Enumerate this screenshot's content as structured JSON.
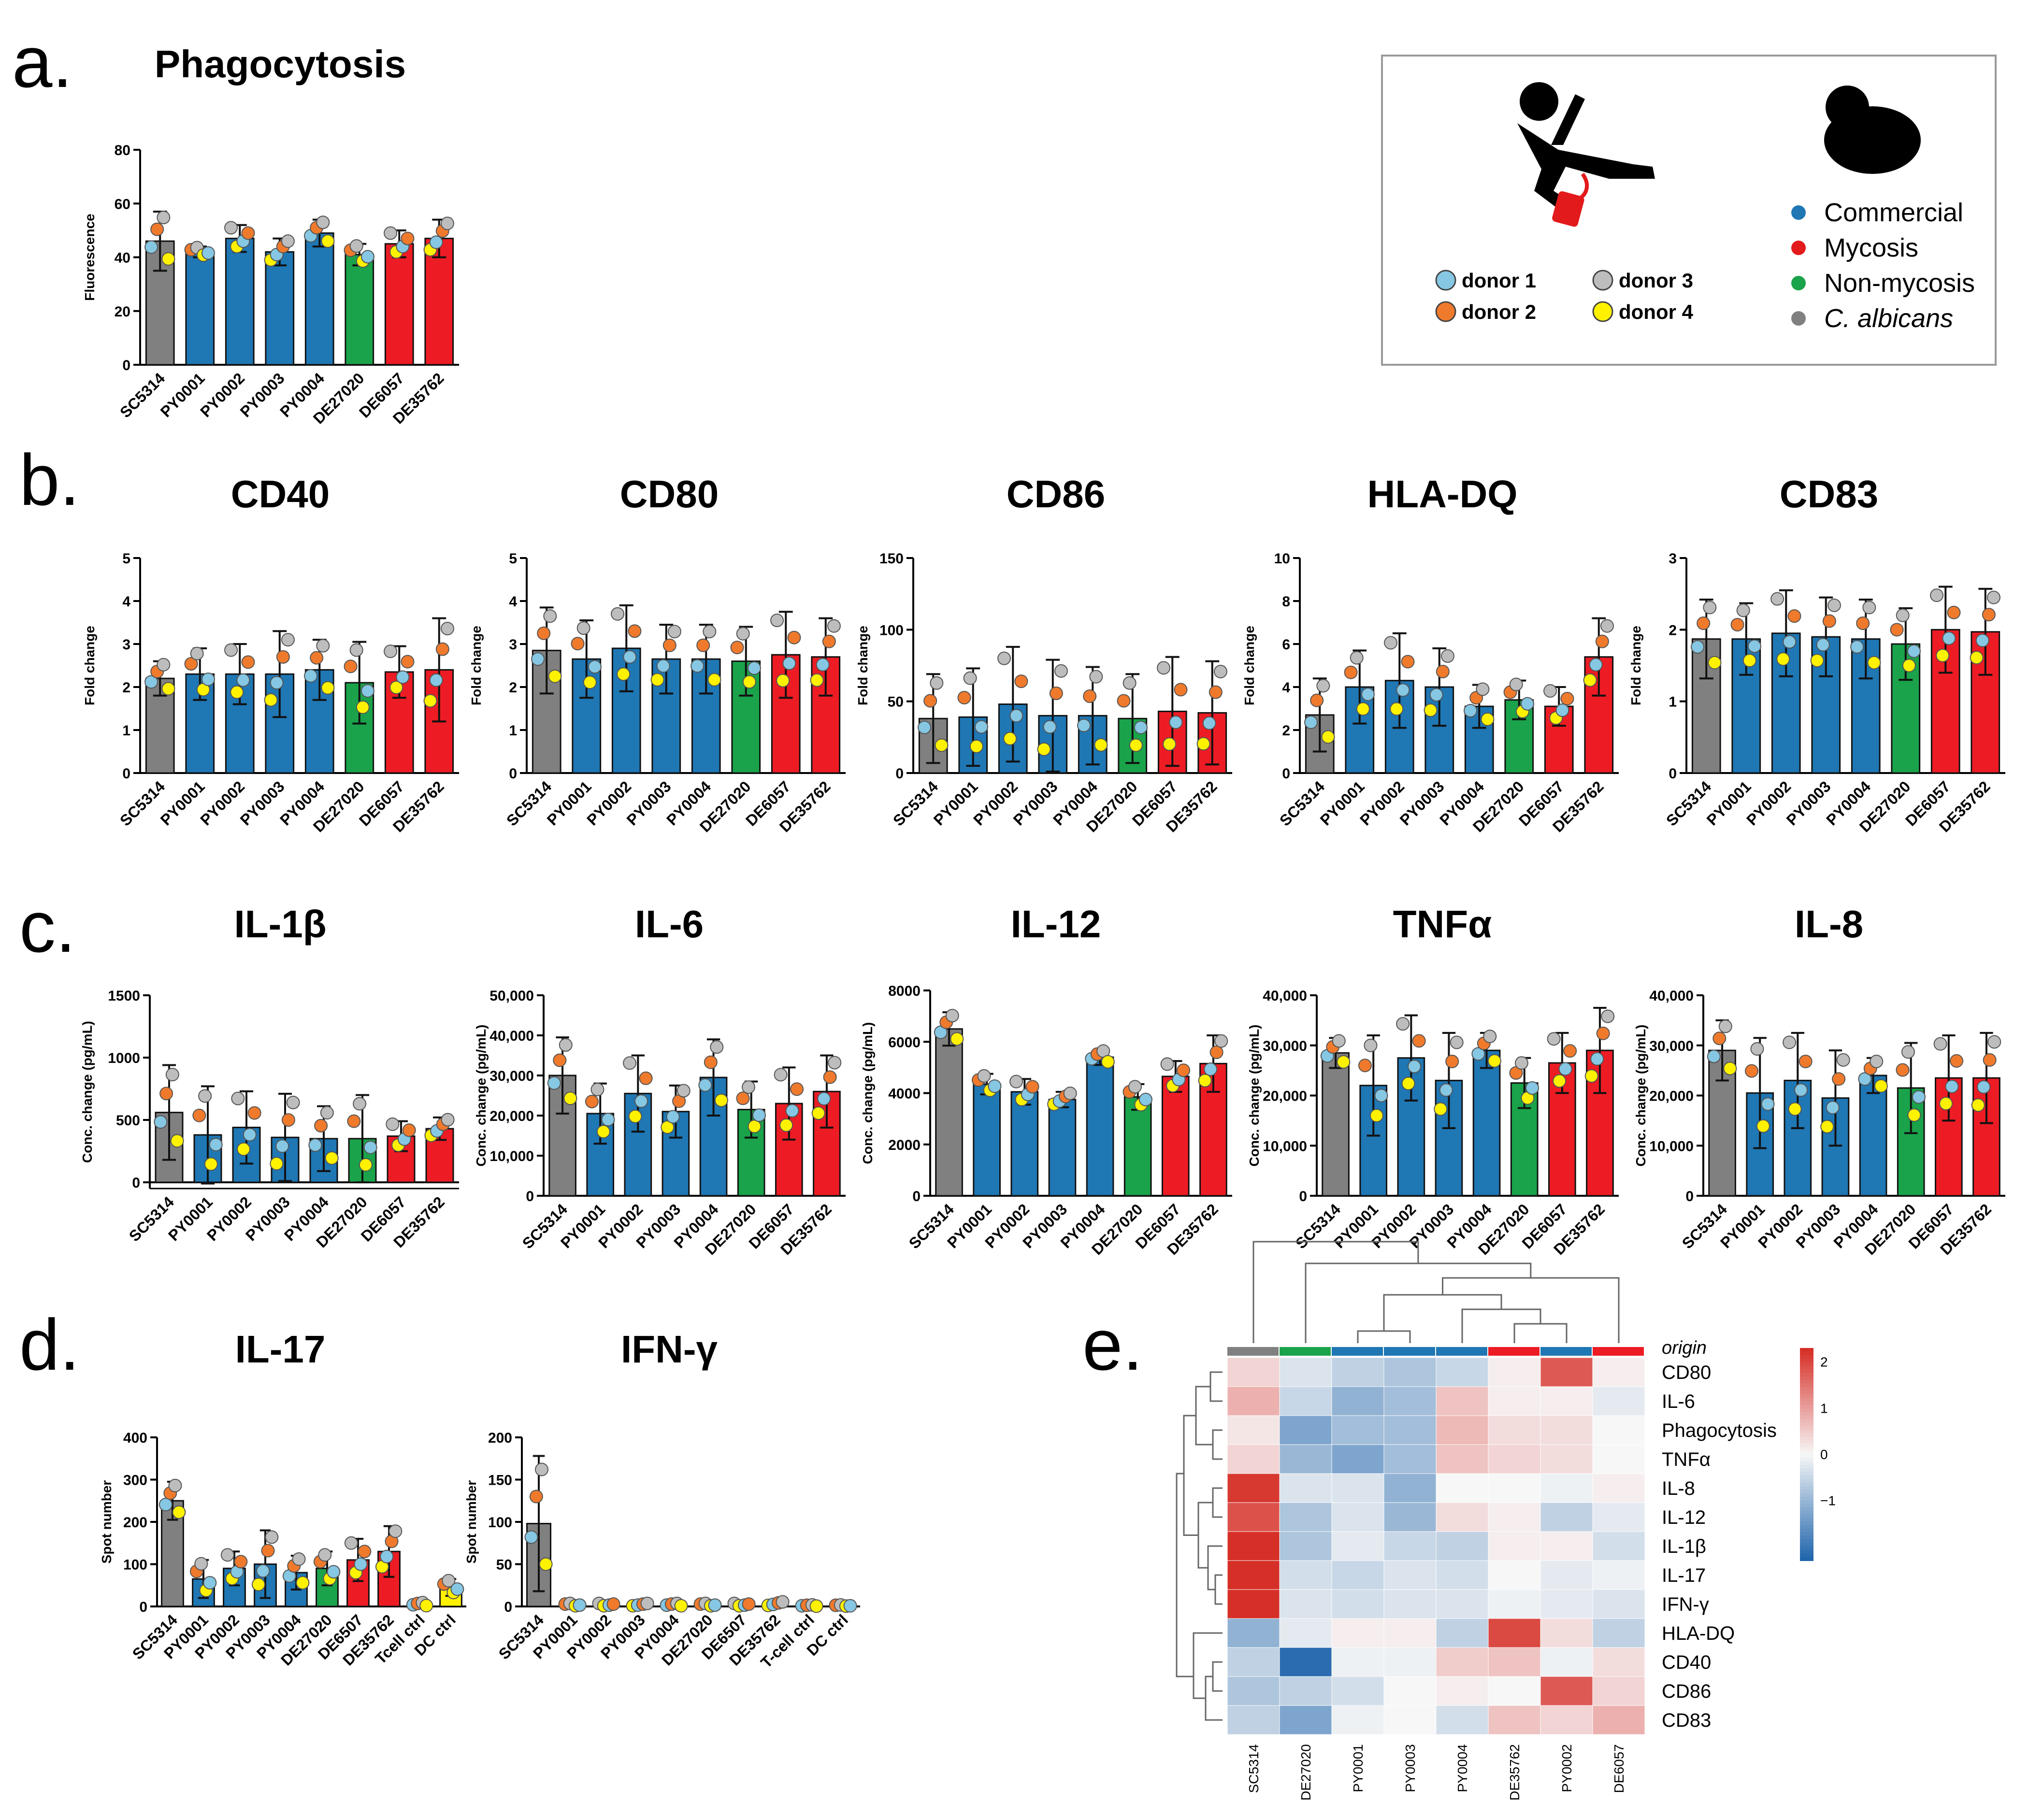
{
  "panel_labels": {
    "a": "a.",
    "b": "b.",
    "c": "c.",
    "d": "d.",
    "e": "e."
  },
  "legend": {
    "donors": [
      {
        "label": "donor 1",
        "color": "#86c7e3"
      },
      {
        "label": "donor 2",
        "color": "#f07a2c"
      },
      {
        "label": "donor 3",
        "color": "#bdbdbd"
      },
      {
        "label": "donor 4",
        "color": "#fff200"
      }
    ],
    "origins": [
      {
        "label": "Commercial",
        "color": "#1f77b4"
      },
      {
        "label": "Mycosis",
        "color": "#e31a1c"
      },
      {
        "label": "Non-mycosis",
        "color": "#1aa34a"
      },
      {
        "label": "C. albicans",
        "color": "#808080"
      }
    ]
  },
  "colors": {
    "gray": "#808080",
    "blue": "#1f77b4",
    "green": "#1aa34a",
    "red": "#ed1c24",
    "yellow": "#fff200"
  },
  "chart_data": [
    {
      "id": "phago",
      "type": "bar",
      "title": "Phagocytosis",
      "ylabel": "Fluorescence",
      "categories": [
        "SC5314",
        "PY0001",
        "PY0002",
        "PY0003",
        "PY0004",
        "DE27020",
        "DE6057",
        "DE35762"
      ],
      "bar_colors": [
        "gray",
        "blue",
        "blue",
        "blue",
        "blue",
        "green",
        "red",
        "red"
      ],
      "values": [
        46,
        42,
        47,
        42,
        49,
        41,
        45,
        47
      ],
      "errors": [
        11,
        2,
        5,
        5,
        5,
        4,
        5,
        7
      ],
      "ylim": [
        0,
        80
      ],
      "yticks": [
        "0",
        "20",
        "40",
        "60",
        "80"
      ]
    },
    {
      "id": "cd40",
      "type": "bar",
      "title": "CD40",
      "ylabel": "Fold change",
      "categories": [
        "SC5314",
        "PY0001",
        "PY0002",
        "PY0003",
        "PY0004",
        "DE27020",
        "DE6057",
        "DE35762"
      ],
      "bar_colors": [
        "gray",
        "blue",
        "blue",
        "blue",
        "blue",
        "green",
        "red",
        "red"
      ],
      "values": [
        2.2,
        2.3,
        2.3,
        2.3,
        2.4,
        2.1,
        2.35,
        2.4
      ],
      "errors": [
        0.4,
        0.6,
        0.7,
        1.0,
        0.7,
        0.95,
        0.6,
        1.2
      ],
      "ylim": [
        0,
        5
      ],
      "yticks": [
        "0",
        "1",
        "2",
        "3",
        "4",
        "5"
      ]
    },
    {
      "id": "cd80",
      "type": "bar",
      "title": "CD80",
      "ylabel": "Fold change",
      "categories": [
        "SC5314",
        "PY0001",
        "PY0002",
        "PY0003",
        "PY0004",
        "DE27020",
        "DE6057",
        "DE35762"
      ],
      "bar_colors": [
        "gray",
        "blue",
        "blue",
        "blue",
        "blue",
        "green",
        "red",
        "red"
      ],
      "values": [
        2.85,
        2.65,
        2.9,
        2.65,
        2.65,
        2.6,
        2.75,
        2.7
      ],
      "errors": [
        1.0,
        0.9,
        1.0,
        0.8,
        0.8,
        0.8,
        1.0,
        0.9
      ],
      "ylim": [
        0,
        5
      ],
      "yticks": [
        "0",
        "1",
        "2",
        "3",
        "4",
        "5"
      ]
    },
    {
      "id": "cd86",
      "type": "bar",
      "title": "CD86",
      "ylabel": "Fold change",
      "categories": [
        "SC5314",
        "PY0001",
        "PY0002",
        "PY0003",
        "PY0004",
        "DE27020",
        "DE6057",
        "DE35762"
      ],
      "bar_colors": [
        "gray",
        "blue",
        "blue",
        "blue",
        "blue",
        "green",
        "red",
        "red"
      ],
      "values": [
        38,
        39,
        48,
        40,
        40,
        38,
        43,
        42
      ],
      "errors": [
        31,
        34,
        40,
        39,
        34,
        31,
        38,
        36
      ],
      "ylim": [
        0,
        150
      ],
      "yticks": [
        "0",
        "50",
        "100",
        "150"
      ]
    },
    {
      "id": "hladq",
      "type": "bar",
      "title": "HLA-DQ",
      "ylabel": "Fold change",
      "categories": [
        "SC5314",
        "PY0001",
        "PY0002",
        "PY0003",
        "PY0004",
        "DE27020",
        "DE6057",
        "DE35762"
      ],
      "bar_colors": [
        "gray",
        "blue",
        "blue",
        "blue",
        "blue",
        "green",
        "red",
        "red"
      ],
      "values": [
        2.7,
        4.0,
        4.3,
        4.0,
        3.1,
        3.4,
        3.1,
        5.4
      ],
      "errors": [
        1.7,
        1.7,
        2.2,
        1.8,
        1.0,
        0.9,
        0.9,
        1.8
      ],
      "ylim": [
        0,
        10
      ],
      "yticks": [
        "0",
        "2",
        "4",
        "6",
        "8",
        "10"
      ]
    },
    {
      "id": "cd83",
      "type": "bar",
      "title": "CD83",
      "ylabel": "Fold change",
      "categories": [
        "SC5314",
        "PY0001",
        "PY0002",
        "PY0003",
        "PY0004",
        "DE27020",
        "DE6057",
        "DE35762"
      ],
      "bar_colors": [
        "gray",
        "blue",
        "blue",
        "blue",
        "blue",
        "green",
        "red",
        "red"
      ],
      "values": [
        1.87,
        1.87,
        1.95,
        1.9,
        1.87,
        1.8,
        2.0,
        1.97
      ],
      "errors": [
        0.55,
        0.5,
        0.6,
        0.55,
        0.55,
        0.5,
        0.6,
        0.6
      ],
      "ylim": [
        0,
        3
      ],
      "yticks": [
        "0",
        "1",
        "2",
        "3"
      ]
    },
    {
      "id": "il1b",
      "type": "bar",
      "title": "IL-1β",
      "ylabel": "Conc. change (pg/mL)",
      "categories": [
        "SC5314",
        "PY0001",
        "PY0002",
        "PY0003",
        "PY0004",
        "DE27020",
        "DE6057",
        "DE35762"
      ],
      "bar_colors": [
        "gray",
        "blue",
        "blue",
        "blue",
        "blue",
        "green",
        "red",
        "red"
      ],
      "values": [
        560,
        380,
        440,
        360,
        350,
        350,
        370,
        430
      ],
      "errors": [
        380,
        390,
        290,
        350,
        260,
        350,
        120,
        90
      ],
      "ylim": [
        -50,
        1500
      ],
      "yticks": [
        "0",
        "500",
        "1000",
        "1500"
      ]
    },
    {
      "id": "il6",
      "type": "bar",
      "title": "IL-6",
      "ylabel": "Conc. change (pg/mL)",
      "categories": [
        "SC5314",
        "PY0001",
        "PY0002",
        "PY0003",
        "PY0004",
        "DE27020",
        "DE6057",
        "DE35762"
      ],
      "bar_colors": [
        "gray",
        "blue",
        "blue",
        "blue",
        "blue",
        "green",
        "red",
        "red"
      ],
      "values": [
        30000,
        20500,
        25500,
        21000,
        29500,
        21500,
        23000,
        26000
      ],
      "errors": [
        9500,
        7500,
        9500,
        6500,
        9500,
        7000,
        9000,
        9000
      ],
      "ylim": [
        0,
        50000
      ],
      "yticks": [
        "0",
        "10,000",
        "20,000",
        "30,000",
        "40,000",
        "50,000"
      ]
    },
    {
      "id": "il12",
      "type": "bar",
      "title": "IL-12",
      "ylabel": "Conc. change (pg/mL)",
      "categories": [
        "SC5314",
        "PY0001",
        "PY0002",
        "PY0003",
        "PY0004",
        "DE27020",
        "DE6057",
        "DE35762"
      ],
      "bar_colors": [
        "gray",
        "blue",
        "blue",
        "blue",
        "blue",
        "green",
        "red",
        "red"
      ],
      "values": [
        6500,
        4350,
        4050,
        3750,
        5400,
        3850,
        4650,
        5150
      ],
      "errors": [
        650,
        400,
        500,
        300,
        300,
        500,
        600,
        1100
      ],
      "ylim": [
        0,
        8000
      ],
      "yticks": [
        "0",
        "2000",
        "4000",
        "6000",
        "8000"
      ]
    },
    {
      "id": "tnfa",
      "type": "bar",
      "title": "TNFα",
      "ylabel": "Conc. change (pg/mL)",
      "categories": [
        "SC5314",
        "PY0001",
        "PY0002",
        "PY0003",
        "PY0004",
        "DE27020",
        "DE6057",
        "DE35762"
      ],
      "bar_colors": [
        "gray",
        "blue",
        "blue",
        "blue",
        "blue",
        "green",
        "red",
        "red"
      ],
      "values": [
        28500,
        22000,
        27500,
        23000,
        29000,
        22500,
        26500,
        29000
      ],
      "errors": [
        3000,
        10000,
        8500,
        9500,
        3500,
        5000,
        6000,
        8500
      ],
      "ylim": [
        0,
        40000
      ],
      "yticks": [
        "0",
        "10,000",
        "20,000",
        "30,000",
        "40,000"
      ]
    },
    {
      "id": "il8",
      "type": "bar",
      "title": "IL-8",
      "ylabel": "Conc. change (pg/mL)",
      "categories": [
        "SC5314",
        "PY0001",
        "PY0002",
        "PY0003",
        "PY0004",
        "DE27020",
        "DE6057",
        "DE35762"
      ],
      "bar_colors": [
        "gray",
        "blue",
        "blue",
        "blue",
        "blue",
        "green",
        "red",
        "red"
      ],
      "values": [
        29000,
        20500,
        23000,
        19500,
        24000,
        21500,
        23500,
        23500
      ],
      "errors": [
        6000,
        11000,
        9500,
        9500,
        3500,
        9000,
        8500,
        9000
      ],
      "ylim": [
        0,
        40000
      ],
      "yticks": [
        "0",
        "10,000",
        "20,000",
        "30,000",
        "40,000"
      ]
    },
    {
      "id": "il17",
      "type": "bar",
      "title": "IL-17",
      "ylabel": "Spot number",
      "categories": [
        "SC5314",
        "PY0001",
        "PY0002",
        "PY0003",
        "PY0004",
        "DE27020",
        "DE6507",
        "DE35762",
        "Tcell ctrl",
        "DC ctrl"
      ],
      "bar_colors": [
        "gray",
        "blue",
        "blue",
        "blue",
        "blue",
        "green",
        "red",
        "red",
        "yellow",
        "yellow"
      ],
      "values": [
        250,
        65,
        90,
        100,
        80,
        90,
        110,
        130,
        5,
        45
      ],
      "errors": [
        45,
        45,
        40,
        80,
        40,
        40,
        50,
        60,
        5,
        20
      ],
      "ylim": [
        0,
        400
      ],
      "yticks": [
        "0",
        "100",
        "200",
        "300",
        "400"
      ]
    },
    {
      "id": "ifng",
      "type": "bar",
      "title": "IFN-γ",
      "ylabel": "Spot number",
      "categories": [
        "SC5314",
        "PY0001",
        "PY0002",
        "PY0003",
        "PY0004",
        "DE27020",
        "DE6507",
        "DE35762",
        "T-cell ctrl",
        "DC ctrl"
      ],
      "bar_colors": [
        "gray",
        "blue",
        "blue",
        "blue",
        "blue",
        "green",
        "red",
        "red",
        "yellow",
        "yellow"
      ],
      "values": [
        98,
        2,
        2,
        2,
        2,
        2,
        2,
        3,
        1,
        1
      ],
      "errors": [
        80,
        2,
        2,
        2,
        2,
        2,
        2,
        3,
        1,
        1
      ],
      "ylim": [
        0,
        200
      ],
      "yticks": [
        "0",
        "50",
        "100",
        "150",
        "200"
      ]
    },
    {
      "id": "heatmap",
      "type": "heatmap",
      "columns": [
        "SC5314",
        "DE27020",
        "PY0001",
        "PY0003",
        "PY0004",
        "DE35762",
        "PY0002",
        "DE6057"
      ],
      "column_origin": [
        "gray",
        "green",
        "blue",
        "blue",
        "blue",
        "red",
        "blue",
        "red"
      ],
      "origin_label": "origin",
      "rows": [
        "CD80",
        "IL-6",
        "Phagocytosis",
        "TNFα",
        "IL-8",
        "IL-12",
        "IL-1β",
        "IL-17",
        "IFN-γ",
        "HLA-DQ",
        "CD40",
        "CD86",
        "CD83"
      ],
      "values": [
        [
          0.4,
          -0.3,
          -0.6,
          -0.8,
          -0.5,
          0.1,
          1.8,
          0.1
        ],
        [
          0.8,
          -0.5,
          -1.1,
          -0.9,
          0.6,
          0.1,
          0.1,
          -0.2
        ],
        [
          0.2,
          -1.3,
          -0.9,
          -0.9,
          0.7,
          0.3,
          0.3,
          0.0
        ],
        [
          0.4,
          -1.0,
          -1.3,
          -0.9,
          0.6,
          0.4,
          0.3,
          0.0
        ],
        [
          2.2,
          -0.3,
          -0.3,
          -1.1,
          0.0,
          0.0,
          -0.1,
          0.1
        ],
        [
          1.9,
          -0.8,
          -0.3,
          -1.0,
          0.3,
          0.1,
          -0.6,
          -0.2
        ],
        [
          2.3,
          -0.8,
          -0.2,
          -0.5,
          -0.6,
          0.1,
          0.1,
          -0.4
        ],
        [
          2.5,
          -0.4,
          -0.5,
          -0.3,
          -0.4,
          0.0,
          -0.2,
          -0.1
        ],
        [
          2.5,
          -0.3,
          -0.4,
          -0.3,
          -0.3,
          -0.1,
          -0.2,
          -0.3
        ],
        [
          -1.1,
          -0.2,
          0.1,
          0.1,
          -0.6,
          2.0,
          0.3,
          -0.6
        ],
        [
          -0.6,
          -2.2,
          -0.1,
          -0.1,
          0.5,
          0.6,
          -0.1,
          0.3
        ],
        [
          -0.8,
          -0.6,
          -0.4,
          0.0,
          0.1,
          0.0,
          1.8,
          0.4
        ],
        [
          -0.6,
          -1.3,
          -0.1,
          0.0,
          -0.4,
          0.6,
          0.4,
          0.8
        ]
      ],
      "colorbar_ticks": [
        "2",
        "1",
        "0",
        "−1"
      ],
      "vmin": -2.3,
      "vmax": 2.3
    }
  ]
}
